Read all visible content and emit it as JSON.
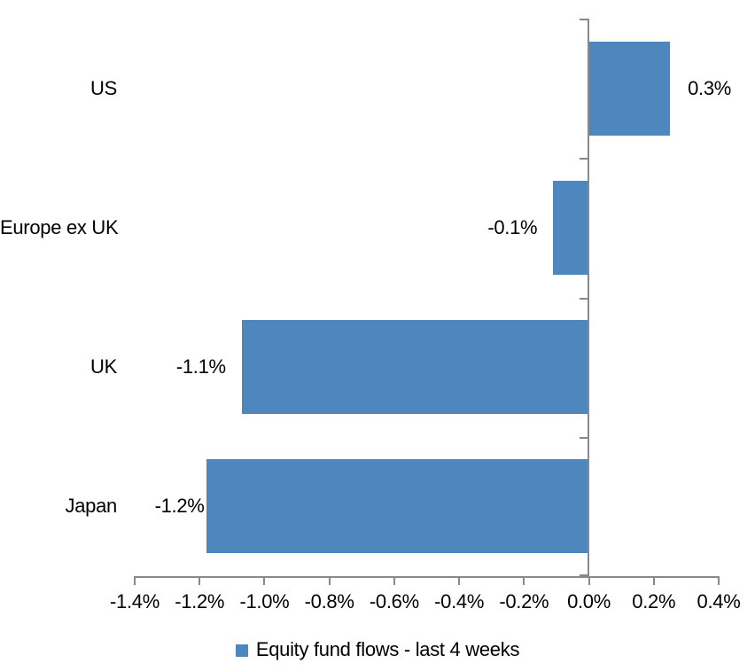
{
  "chart_data": {
    "type": "bar",
    "orientation": "horizontal",
    "title": "",
    "xlabel": "",
    "ylabel": "",
    "categories": [
      "US",
      "Europe ex UK",
      "UK",
      "Japan"
    ],
    "series": [
      {
        "name": "Equity fund flows - last 4 weeks",
        "values_pct": [
          0.3,
          -0.1,
          -1.1,
          -1.2
        ],
        "data_labels": [
          "0.3%",
          "-0.1%",
          "-1.1%",
          "-1.2%"
        ],
        "bar_extent_est_pct": [
          0.25,
          -0.11,
          -1.07,
          -1.18
        ]
      }
    ],
    "x_axis": {
      "range_pct": [
        -1.4,
        0.4
      ],
      "tick_values_pct": [
        -1.4,
        -1.2,
        -1.0,
        -0.8,
        -0.6,
        -0.4,
        -0.2,
        0.0,
        0.2,
        0.4
      ],
      "tick_labels": [
        "-1.4%",
        "-1.2%",
        "-1.0%",
        "-0.8%",
        "-0.6%",
        "-0.4%",
        "-0.2%",
        "0.0%",
        "0.2%",
        "0.4%"
      ]
    },
    "legend": {
      "position": "bottom-center",
      "entries": [
        "Equity fund flows - last 4 weeks"
      ]
    },
    "grid": false,
    "colors": {
      "bar": "#4E86BE",
      "axis": "#898989",
      "text": "#000000",
      "background": "#FFFFFF"
    }
  }
}
